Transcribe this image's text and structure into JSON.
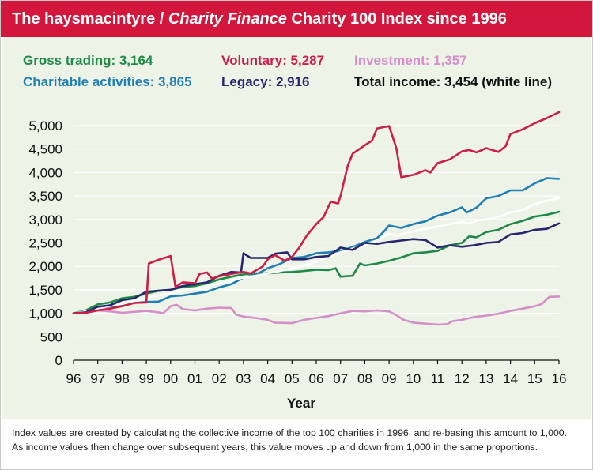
{
  "title": {
    "part1": "The haysmacintyre / ",
    "part2": "Charity Finance",
    "part3": " Charity 100 Index since 1996"
  },
  "legend": [
    {
      "label": "Gross trading: 3,164",
      "color": "#1f8a47"
    },
    {
      "label": "Voluntary: 5,287",
      "color": "#cc1f48"
    },
    {
      "label": "Investment: 1,357",
      "color": "#d48fc8"
    },
    {
      "label": "Charitable activities: 3,865",
      "color": "#1f7fb3"
    },
    {
      "label": "Legacy: 2,916",
      "color": "#27276f"
    },
    {
      "label": "Total income: 3,454 (white line)",
      "color": "#111111"
    }
  ],
  "footnote": {
    "line1": "Index values are created by calculating the collective income of the top 100 charities in 1996, and re-basing this amount to 1,000.",
    "line2": "As income values then change over subsequent years, this value moves up and down from 1,000 in the same proportions."
  },
  "chart_data": {
    "type": "line",
    "xlabel": "Year",
    "ylabel": "",
    "ylim": [
      0,
      5000
    ],
    "xlim": [
      1996,
      2016
    ],
    "yticks": [
      0,
      500,
      1000,
      1500,
      2000,
      2500,
      3000,
      3500,
      4000,
      4500,
      5000
    ],
    "ytick_labels": [
      "0",
      "500",
      "1,000",
      "1,500",
      "2,000",
      "2,500",
      "3,000",
      "3,500",
      "4,000",
      "4,500",
      "5,000"
    ],
    "xticks": [
      1996,
      1997,
      1998,
      1999,
      2000,
      2001,
      2002,
      2003,
      2004,
      2005,
      2006,
      2007,
      2008,
      2009,
      2010,
      2011,
      2012,
      2013,
      2014,
      2015,
      2016
    ],
    "xtick_labels": [
      "96",
      "97",
      "98",
      "99",
      "00",
      "01",
      "02",
      "03",
      "04",
      "05",
      "06",
      "07",
      "08",
      "09",
      "10",
      "11",
      "12",
      "13",
      "14",
      "15",
      "16"
    ],
    "grid": true,
    "series": [
      {
        "name": "Investment",
        "color": "#d48fc8",
        "points": [
          [
            1996,
            1000
          ],
          [
            1996.5,
            1010
          ],
          [
            1997,
            1060
          ],
          [
            1997.5,
            1040
          ],
          [
            1998,
            1010
          ],
          [
            1998.5,
            1030
          ],
          [
            1999,
            1050
          ],
          [
            1999.5,
            1020
          ],
          [
            1999.7,
            1000
          ],
          [
            2000,
            1150
          ],
          [
            2000.25,
            1180
          ],
          [
            2000.5,
            1090
          ],
          [
            2001,
            1060
          ],
          [
            2001.5,
            1100
          ],
          [
            2002,
            1120
          ],
          [
            2002.5,
            1110
          ],
          [
            2002.7,
            970
          ],
          [
            2003,
            930
          ],
          [
            2003.5,
            900
          ],
          [
            2004,
            860
          ],
          [
            2004.3,
            800
          ],
          [
            2005,
            790
          ],
          [
            2005.5,
            860
          ],
          [
            2006,
            900
          ],
          [
            2006.5,
            940
          ],
          [
            2007,
            1000
          ],
          [
            2007.5,
            1050
          ],
          [
            2008,
            1040
          ],
          [
            2008.5,
            1060
          ],
          [
            2009,
            1040
          ],
          [
            2009.3,
            960
          ],
          [
            2009.6,
            860
          ],
          [
            2010,
            800
          ],
          [
            2010.5,
            780
          ],
          [
            2011,
            760
          ],
          [
            2011.4,
            770
          ],
          [
            2011.6,
            830
          ],
          [
            2012,
            860
          ],
          [
            2012.5,
            920
          ],
          [
            2013,
            950
          ],
          [
            2013.5,
            990
          ],
          [
            2014,
            1050
          ],
          [
            2014.5,
            1100
          ],
          [
            2015,
            1150
          ],
          [
            2015.3,
            1200
          ],
          [
            2015.6,
            1350
          ],
          [
            2016,
            1357
          ]
        ]
      },
      {
        "name": "Gross trading",
        "color": "#1f8a47",
        "points": [
          [
            1996,
            1000
          ],
          [
            1996.5,
            1060
          ],
          [
            1997,
            1190
          ],
          [
            1997.5,
            1230
          ],
          [
            1998,
            1320
          ],
          [
            1998.5,
            1350
          ],
          [
            1999,
            1420
          ],
          [
            1999.5,
            1480
          ],
          [
            2000,
            1500
          ],
          [
            2000.5,
            1560
          ],
          [
            2001,
            1580
          ],
          [
            2001.5,
            1640
          ],
          [
            2002,
            1720
          ],
          [
            2002.5,
            1780
          ],
          [
            2003,
            1830
          ],
          [
            2003.5,
            1850
          ],
          [
            2004,
            1850
          ],
          [
            2004.5,
            1870
          ],
          [
            2005,
            1880
          ],
          [
            2005.5,
            1900
          ],
          [
            2006,
            1930
          ],
          [
            2006.5,
            1920
          ],
          [
            2006.8,
            1960
          ],
          [
            2007,
            1780
          ],
          [
            2007.5,
            1800
          ],
          [
            2007.8,
            2060
          ],
          [
            2008,
            2020
          ],
          [
            2008.5,
            2060
          ],
          [
            2009,
            2120
          ],
          [
            2009.5,
            2190
          ],
          [
            2010,
            2280
          ],
          [
            2010.5,
            2300
          ],
          [
            2011,
            2330
          ],
          [
            2011.5,
            2450
          ],
          [
            2012,
            2500
          ],
          [
            2012.3,
            2640
          ],
          [
            2012.6,
            2620
          ],
          [
            2013,
            2730
          ],
          [
            2013.5,
            2780
          ],
          [
            2014,
            2900
          ],
          [
            2014.5,
            2970
          ],
          [
            2015,
            3060
          ],
          [
            2015.5,
            3100
          ],
          [
            2016,
            3164
          ]
        ]
      },
      {
        "name": "Charitable activities",
        "color": "#1f7fb3",
        "points": [
          [
            1996,
            1000
          ],
          [
            1996.5,
            1020
          ],
          [
            1997,
            1120
          ],
          [
            1997.5,
            1150
          ],
          [
            1998,
            1170
          ],
          [
            1998.5,
            1220
          ],
          [
            1999,
            1240
          ],
          [
            1999.5,
            1250
          ],
          [
            2000,
            1360
          ],
          [
            2000.5,
            1380
          ],
          [
            2001,
            1420
          ],
          [
            2001.5,
            1460
          ],
          [
            2002,
            1550
          ],
          [
            2002.5,
            1620
          ],
          [
            2003,
            1760
          ],
          [
            2003.5,
            1820
          ],
          [
            2004,
            1960
          ],
          [
            2004.5,
            2050
          ],
          [
            2005,
            2180
          ],
          [
            2005.5,
            2200
          ],
          [
            2006,
            2280
          ],
          [
            2006.5,
            2300
          ],
          [
            2007,
            2330
          ],
          [
            2007.5,
            2410
          ],
          [
            2008,
            2520
          ],
          [
            2008.5,
            2600
          ],
          [
            2008.8,
            2750
          ],
          [
            2009,
            2870
          ],
          [
            2009.5,
            2820
          ],
          [
            2010,
            2900
          ],
          [
            2010.5,
            2960
          ],
          [
            2011,
            3080
          ],
          [
            2011.5,
            3150
          ],
          [
            2012,
            3260
          ],
          [
            2012.2,
            3150
          ],
          [
            2012.6,
            3250
          ],
          [
            2013,
            3450
          ],
          [
            2013.5,
            3500
          ],
          [
            2014,
            3620
          ],
          [
            2014.5,
            3620
          ],
          [
            2015,
            3770
          ],
          [
            2015.5,
            3880
          ],
          [
            2016,
            3865
          ]
        ]
      },
      {
        "name": "Total income",
        "color": "#ffffff",
        "points": [
          [
            1996,
            1000
          ],
          [
            1996.5,
            1040
          ],
          [
            1997,
            1110
          ],
          [
            1997.5,
            1160
          ],
          [
            1998,
            1200
          ],
          [
            1998.5,
            1260
          ],
          [
            1999,
            1320
          ],
          [
            1999.5,
            1380
          ],
          [
            2000,
            1420
          ],
          [
            2000.5,
            1480
          ],
          [
            2001,
            1520
          ],
          [
            2001.5,
            1560
          ],
          [
            2002,
            1640
          ],
          [
            2002.5,
            1700
          ],
          [
            2003,
            1760
          ],
          [
            2003.5,
            1800
          ],
          [
            2004,
            1850
          ],
          [
            2004.5,
            1900
          ],
          [
            2005,
            1960
          ],
          [
            2005.5,
            2020
          ],
          [
            2006,
            2100
          ],
          [
            2006.5,
            2200
          ],
          [
            2007,
            2300
          ],
          [
            2007.5,
            2380
          ],
          [
            2008,
            2450
          ],
          [
            2008.5,
            2550
          ],
          [
            2009,
            2700
          ],
          [
            2009.3,
            2650
          ],
          [
            2009.6,
            2700
          ],
          [
            2010,
            2750
          ],
          [
            2010.5,
            2800
          ],
          [
            2011,
            2850
          ],
          [
            2011.5,
            2900
          ],
          [
            2012,
            2950
          ],
          [
            2012.3,
            2920
          ],
          [
            2012.7,
            2980
          ],
          [
            2013,
            3000
          ],
          [
            2013.5,
            3050
          ],
          [
            2014,
            3150
          ],
          [
            2014.5,
            3200
          ],
          [
            2015,
            3330
          ],
          [
            2015.5,
            3400
          ],
          [
            2016,
            3454
          ]
        ]
      },
      {
        "name": "Legacy",
        "color": "#27276f",
        "points": [
          [
            1996,
            1000
          ],
          [
            1996.5,
            1020
          ],
          [
            1997,
            1140
          ],
          [
            1997.5,
            1170
          ],
          [
            1998,
            1280
          ],
          [
            1998.5,
            1320
          ],
          [
            1999,
            1460
          ],
          [
            1999.5,
            1480
          ],
          [
            2000,
            1500
          ],
          [
            2000.5,
            1580
          ],
          [
            2001,
            1620
          ],
          [
            2001.5,
            1660
          ],
          [
            2002,
            1800
          ],
          [
            2002.5,
            1880
          ],
          [
            2002.9,
            1870
          ],
          [
            2003,
            2280
          ],
          [
            2003.3,
            2180
          ],
          [
            2004,
            2180
          ],
          [
            2004.3,
            2270
          ],
          [
            2004.8,
            2300
          ],
          [
            2005,
            2150
          ],
          [
            2005.5,
            2150
          ],
          [
            2006,
            2200
          ],
          [
            2006.5,
            2220
          ],
          [
            2007,
            2400
          ],
          [
            2007.5,
            2350
          ],
          [
            2008,
            2500
          ],
          [
            2008.5,
            2480
          ],
          [
            2009,
            2520
          ],
          [
            2009.5,
            2550
          ],
          [
            2010,
            2580
          ],
          [
            2010.5,
            2560
          ],
          [
            2011,
            2400
          ],
          [
            2011.5,
            2450
          ],
          [
            2012,
            2420
          ],
          [
            2012.5,
            2450
          ],
          [
            2013,
            2500
          ],
          [
            2013.5,
            2520
          ],
          [
            2014,
            2680
          ],
          [
            2014.5,
            2710
          ],
          [
            2015,
            2780
          ],
          [
            2015.5,
            2800
          ],
          [
            2016,
            2916
          ]
        ]
      },
      {
        "name": "Voluntary",
        "color": "#cc1f48",
        "points": [
          [
            1996,
            1000
          ],
          [
            1996.5,
            1010
          ],
          [
            1997,
            1060
          ],
          [
            1997.5,
            1100
          ],
          [
            1998,
            1150
          ],
          [
            1998.5,
            1220
          ],
          [
            1999,
            1230
          ],
          [
            1999.1,
            2060
          ],
          [
            1999.5,
            2140
          ],
          [
            2000,
            2220
          ],
          [
            2000.2,
            1560
          ],
          [
            2000.5,
            1660
          ],
          [
            2001,
            1640
          ],
          [
            2001.2,
            1840
          ],
          [
            2001.5,
            1870
          ],
          [
            2001.7,
            1740
          ],
          [
            2002,
            1790
          ],
          [
            2002.5,
            1840
          ],
          [
            2003,
            1880
          ],
          [
            2003.3,
            1850
          ],
          [
            2003.8,
            2000
          ],
          [
            2004,
            2150
          ],
          [
            2004.3,
            2240
          ],
          [
            2004.7,
            2120
          ],
          [
            2005,
            2200
          ],
          [
            2005.3,
            2400
          ],
          [
            2005.6,
            2650
          ],
          [
            2006,
            2900
          ],
          [
            2006.3,
            3050
          ],
          [
            2006.6,
            3380
          ],
          [
            2006.9,
            3340
          ],
          [
            2007,
            3500
          ],
          [
            2007.3,
            4150
          ],
          [
            2007.5,
            4400
          ],
          [
            2008,
            4580
          ],
          [
            2008.3,
            4680
          ],
          [
            2008.5,
            4940
          ],
          [
            2009,
            4990
          ],
          [
            2009.3,
            4520
          ],
          [
            2009.5,
            3900
          ],
          [
            2010,
            3950
          ],
          [
            2010.5,
            4050
          ],
          [
            2010.7,
            4000
          ],
          [
            2011,
            4200
          ],
          [
            2011.5,
            4280
          ],
          [
            2012,
            4450
          ],
          [
            2012.3,
            4480
          ],
          [
            2012.6,
            4430
          ],
          [
            2013,
            4520
          ],
          [
            2013.5,
            4440
          ],
          [
            2013.8,
            4560
          ],
          [
            2014,
            4820
          ],
          [
            2014.5,
            4920
          ],
          [
            2015,
            5050
          ],
          [
            2015.5,
            5160
          ],
          [
            2016,
            5287
          ]
        ]
      }
    ]
  }
}
